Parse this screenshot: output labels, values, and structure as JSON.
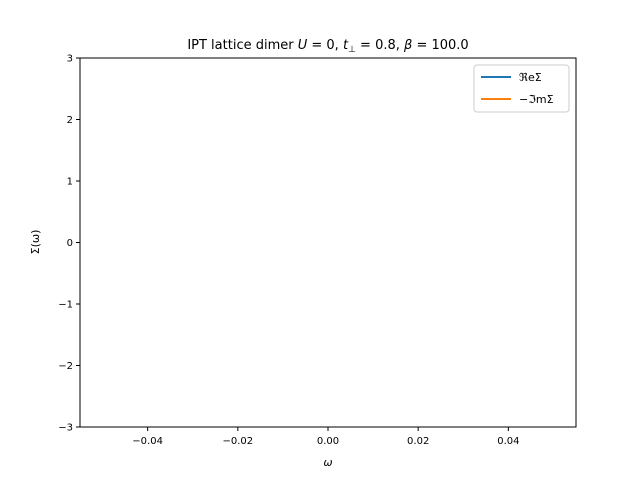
{
  "chart_data": {
    "type": "line",
    "title": "IPT lattice dimer U = 0, t⊥ = 0.8, β = 100.0",
    "title_parts": {
      "prefix": "IPT lattice dimer ",
      "u_sym": "U",
      "u_val": " = 0, ",
      "t_sym": "t",
      "t_sub": "⊥",
      "t_val": " = 0.8, ",
      "b_sym": "β",
      "b_val": " = 100.0"
    },
    "xlabel": "ω",
    "ylabel": "Σ(ω)",
    "xlim": [
      -0.055,
      0.055
    ],
    "ylim": [
      -3,
      3
    ],
    "xticks": [
      -0.04,
      -0.02,
      0.0,
      0.02,
      0.04
    ],
    "xtick_labels": [
      "−0.04",
      "−0.02",
      "0.00",
      "0.02",
      "0.04"
    ],
    "yticks": [
      -3,
      -2,
      -1,
      0,
      1,
      2,
      3
    ],
    "ytick_labels": [
      "−3",
      "−2",
      "−1",
      "0",
      "1",
      "2",
      "3"
    ],
    "grid": false,
    "legend_position": "top-right",
    "series": [
      {
        "name": "ℜeΣ",
        "color": "#1f77b4",
        "x": [],
        "y": []
      },
      {
        "name": "−ℑmΣ",
        "color": "#ff7f0e",
        "x": [],
        "y": []
      }
    ]
  }
}
